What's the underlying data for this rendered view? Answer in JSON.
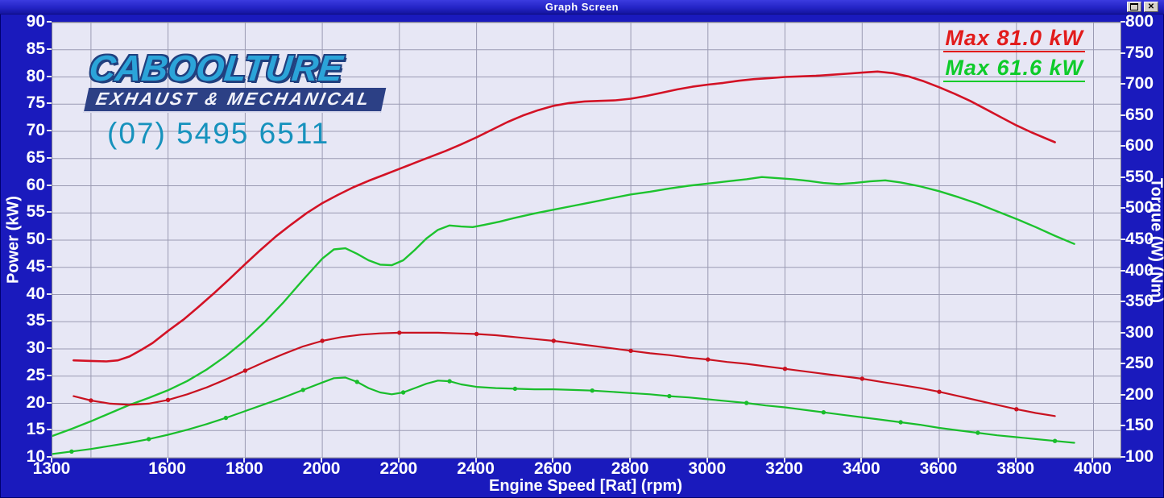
{
  "window": {
    "title": "Graph Screen"
  },
  "branding": {
    "name": "CABOOLTURE",
    "tagline": "EXHAUST & MECHANICAL",
    "phone": "(07) 5495 6511",
    "colors": {
      "name_fill": "#2ba4d9",
      "name_outline": "#21407f",
      "banner_bg": "#2c4085",
      "phone": "#1692bd"
    }
  },
  "legend": [
    {
      "label": "Max 81.0 kW",
      "color": "#e21b1b"
    },
    {
      "label": "Max 61.6 kW",
      "color": "#0ecb2a"
    }
  ],
  "colors": {
    "window_background": "#1a1abd",
    "plot_background": "#e7e7f5",
    "grid": "#9b9bb3",
    "red_series": "#d31225",
    "green_series": "#1dc32e",
    "axis_text": "#ffffff"
  },
  "chart_data": {
    "type": "line",
    "title": "Graph Screen",
    "grid": true,
    "legend_position": "top-right",
    "x_axis": {
      "label": "Engine Speed [Rat] (rpm)",
      "min": 1300,
      "max": 4070,
      "tick_labels": [
        1300,
        1600,
        1800,
        2000,
        2200,
        2400,
        2600,
        2800,
        3000,
        3200,
        3400,
        3600,
        3800,
        4000
      ],
      "grid_start": 1400,
      "grid_end": 4000,
      "grid_step": 200
    },
    "y_left": {
      "label": "Power (kW)",
      "min": 10,
      "max": 90,
      "tick_step": 5,
      "tick_labels": [
        90,
        85,
        80,
        75,
        70,
        65,
        60,
        55,
        50,
        45,
        40,
        35,
        30,
        25,
        20,
        15,
        10
      ]
    },
    "y_right": {
      "label": "Torque (W) (Nm)",
      "min": 100,
      "max": 800,
      "tick_step": 50,
      "tick_labels": [
        800,
        750,
        700,
        650,
        600,
        550,
        500,
        450,
        400,
        350,
        300,
        250,
        200,
        150,
        100
      ]
    },
    "series": [
      {
        "name": "power-run-red",
        "axis": "left",
        "color": "#d31225",
        "width": 2.6,
        "markers": false,
        "max_label": "Max 81.0 kW",
        "peak": {
          "rpm": 3440,
          "value": 81.0
        },
        "points": [
          [
            1355,
            27.9
          ],
          [
            1400,
            27.8
          ],
          [
            1440,
            27.7
          ],
          [
            1470,
            27.9
          ],
          [
            1500,
            28.6
          ],
          [
            1530,
            29.8
          ],
          [
            1560,
            31.1
          ],
          [
            1600,
            33.3
          ],
          [
            1640,
            35.4
          ],
          [
            1680,
            37.8
          ],
          [
            1720,
            40.3
          ],
          [
            1760,
            42.9
          ],
          [
            1800,
            45.6
          ],
          [
            1840,
            48.2
          ],
          [
            1880,
            50.7
          ],
          [
            1920,
            52.9
          ],
          [
            1960,
            55.0
          ],
          [
            2000,
            56.8
          ],
          [
            2040,
            58.3
          ],
          [
            2080,
            59.7
          ],
          [
            2120,
            60.9
          ],
          [
            2160,
            62.0
          ],
          [
            2200,
            63.1
          ],
          [
            2240,
            64.2
          ],
          [
            2280,
            65.3
          ],
          [
            2320,
            66.4
          ],
          [
            2360,
            67.6
          ],
          [
            2400,
            68.9
          ],
          [
            2440,
            70.3
          ],
          [
            2480,
            71.7
          ],
          [
            2520,
            72.9
          ],
          [
            2560,
            73.9
          ],
          [
            2600,
            74.7
          ],
          [
            2640,
            75.2
          ],
          [
            2680,
            75.5
          ],
          [
            2720,
            75.6
          ],
          [
            2760,
            75.7
          ],
          [
            2800,
            76.0
          ],
          [
            2840,
            76.5
          ],
          [
            2880,
            77.1
          ],
          [
            2920,
            77.7
          ],
          [
            2960,
            78.2
          ],
          [
            3000,
            78.6
          ],
          [
            3040,
            78.9
          ],
          [
            3080,
            79.3
          ],
          [
            3120,
            79.6
          ],
          [
            3160,
            79.8
          ],
          [
            3200,
            80.0
          ],
          [
            3240,
            80.1
          ],
          [
            3280,
            80.2
          ],
          [
            3320,
            80.4
          ],
          [
            3360,
            80.6
          ],
          [
            3400,
            80.8
          ],
          [
            3440,
            81.0
          ],
          [
            3480,
            80.7
          ],
          [
            3520,
            80.1
          ],
          [
            3560,
            79.2
          ],
          [
            3600,
            78.1
          ],
          [
            3640,
            76.9
          ],
          [
            3680,
            75.6
          ],
          [
            3720,
            74.1
          ],
          [
            3760,
            72.6
          ],
          [
            3800,
            71.1
          ],
          [
            3840,
            69.8
          ],
          [
            3880,
            68.6
          ],
          [
            3900,
            68.0
          ]
        ]
      },
      {
        "name": "power-run-green",
        "axis": "left",
        "color": "#1dc32e",
        "width": 2.4,
        "markers": false,
        "max_label": "Max 61.6 kW",
        "peak": {
          "rpm": 3140,
          "value": 61.6
        },
        "points": [
          [
            1300,
            14.0
          ],
          [
            1350,
            15.3
          ],
          [
            1400,
            16.7
          ],
          [
            1450,
            18.2
          ],
          [
            1500,
            19.7
          ],
          [
            1550,
            21.0
          ],
          [
            1600,
            22.4
          ],
          [
            1650,
            24.1
          ],
          [
            1700,
            26.2
          ],
          [
            1750,
            28.7
          ],
          [
            1800,
            31.6
          ],
          [
            1850,
            34.9
          ],
          [
            1900,
            38.6
          ],
          [
            1950,
            42.7
          ],
          [
            2000,
            46.6
          ],
          [
            2030,
            48.3
          ],
          [
            2060,
            48.5
          ],
          [
            2090,
            47.5
          ],
          [
            2120,
            46.3
          ],
          [
            2150,
            45.5
          ],
          [
            2180,
            45.4
          ],
          [
            2210,
            46.3
          ],
          [
            2240,
            48.2
          ],
          [
            2270,
            50.3
          ],
          [
            2300,
            51.9
          ],
          [
            2330,
            52.7
          ],
          [
            2360,
            52.5
          ],
          [
            2390,
            52.4
          ],
          [
            2420,
            52.8
          ],
          [
            2460,
            53.4
          ],
          [
            2500,
            54.1
          ],
          [
            2550,
            54.9
          ],
          [
            2600,
            55.6
          ],
          [
            2650,
            56.3
          ],
          [
            2700,
            57.0
          ],
          [
            2750,
            57.7
          ],
          [
            2800,
            58.4
          ],
          [
            2850,
            58.9
          ],
          [
            2900,
            59.5
          ],
          [
            2950,
            60.0
          ],
          [
            3000,
            60.4
          ],
          [
            3050,
            60.8
          ],
          [
            3100,
            61.2
          ],
          [
            3140,
            61.6
          ],
          [
            3180,
            61.4
          ],
          [
            3220,
            61.2
          ],
          [
            3260,
            60.9
          ],
          [
            3300,
            60.5
          ],
          [
            3340,
            60.3
          ],
          [
            3380,
            60.5
          ],
          [
            3420,
            60.8
          ],
          [
            3460,
            61.0
          ],
          [
            3500,
            60.6
          ],
          [
            3550,
            59.9
          ],
          [
            3600,
            59.0
          ],
          [
            3650,
            57.9
          ],
          [
            3700,
            56.7
          ],
          [
            3750,
            55.3
          ],
          [
            3800,
            53.9
          ],
          [
            3850,
            52.4
          ],
          [
            3900,
            50.8
          ],
          [
            3950,
            49.3
          ]
        ]
      },
      {
        "name": "torque-run-red",
        "axis": "right",
        "color": "#c91220",
        "width": 2.2,
        "markers": true,
        "marker_every": 4,
        "points": [
          [
            1355,
            199
          ],
          [
            1400,
            192
          ],
          [
            1450,
            187
          ],
          [
            1500,
            185
          ],
          [
            1550,
            187
          ],
          [
            1600,
            193
          ],
          [
            1650,
            202
          ],
          [
            1700,
            213
          ],
          [
            1750,
            226
          ],
          [
            1800,
            240
          ],
          [
            1850,
            254
          ],
          [
            1900,
            267
          ],
          [
            1950,
            279
          ],
          [
            2000,
            288
          ],
          [
            2050,
            294
          ],
          [
            2100,
            298
          ],
          [
            2150,
            300
          ],
          [
            2200,
            301
          ],
          [
            2250,
            301
          ],
          [
            2300,
            301
          ],
          [
            2350,
            300
          ],
          [
            2400,
            299
          ],
          [
            2450,
            297
          ],
          [
            2500,
            294
          ],
          [
            2550,
            291
          ],
          [
            2600,
            288
          ],
          [
            2650,
            284
          ],
          [
            2700,
            280
          ],
          [
            2750,
            276
          ],
          [
            2800,
            272
          ],
          [
            2850,
            268
          ],
          [
            2900,
            265
          ],
          [
            2950,
            261
          ],
          [
            3000,
            258
          ],
          [
            3050,
            254
          ],
          [
            3100,
            251
          ],
          [
            3150,
            247
          ],
          [
            3200,
            243
          ],
          [
            3250,
            239
          ],
          [
            3300,
            235
          ],
          [
            3350,
            231
          ],
          [
            3400,
            227
          ],
          [
            3450,
            222
          ],
          [
            3500,
            217
          ],
          [
            3550,
            212
          ],
          [
            3600,
            206
          ],
          [
            3650,
            199
          ],
          [
            3700,
            192
          ],
          [
            3750,
            185
          ],
          [
            3800,
            178
          ],
          [
            3850,
            172
          ],
          [
            3900,
            167
          ]
        ]
      },
      {
        "name": "torque-run-green",
        "axis": "right",
        "color": "#19bd2b",
        "width": 2.2,
        "markers": true,
        "marker_every": 4,
        "points": [
          [
            1300,
            106
          ],
          [
            1350,
            110
          ],
          [
            1400,
            114
          ],
          [
            1450,
            119
          ],
          [
            1500,
            124
          ],
          [
            1550,
            130
          ],
          [
            1600,
            137
          ],
          [
            1650,
            145
          ],
          [
            1700,
            154
          ],
          [
            1750,
            164
          ],
          [
            1800,
            175
          ],
          [
            1850,
            186
          ],
          [
            1900,
            197
          ],
          [
            1950,
            209
          ],
          [
            2000,
            221
          ],
          [
            2030,
            228
          ],
          [
            2060,
            229
          ],
          [
            2090,
            222
          ],
          [
            2120,
            212
          ],
          [
            2150,
            205
          ],
          [
            2180,
            202
          ],
          [
            2210,
            205
          ],
          [
            2240,
            212
          ],
          [
            2270,
            219
          ],
          [
            2300,
            224
          ],
          [
            2330,
            223
          ],
          [
            2360,
            218
          ],
          [
            2400,
            214
          ],
          [
            2450,
            212
          ],
          [
            2500,
            211
          ],
          [
            2550,
            210
          ],
          [
            2600,
            210
          ],
          [
            2650,
            209
          ],
          [
            2700,
            208
          ],
          [
            2750,
            206
          ],
          [
            2800,
            204
          ],
          [
            2850,
            202
          ],
          [
            2900,
            199
          ],
          [
            2950,
            197
          ],
          [
            3000,
            194
          ],
          [
            3050,
            191
          ],
          [
            3100,
            188
          ],
          [
            3150,
            184
          ],
          [
            3200,
            181
          ],
          [
            3250,
            177
          ],
          [
            3300,
            173
          ],
          [
            3350,
            169
          ],
          [
            3400,
            165
          ],
          [
            3450,
            161
          ],
          [
            3500,
            157
          ],
          [
            3550,
            153
          ],
          [
            3600,
            148
          ],
          [
            3650,
            144
          ],
          [
            3700,
            140
          ],
          [
            3750,
            136
          ],
          [
            3800,
            133
          ],
          [
            3850,
            130
          ],
          [
            3900,
            127
          ],
          [
            3950,
            124
          ]
        ]
      }
    ]
  }
}
